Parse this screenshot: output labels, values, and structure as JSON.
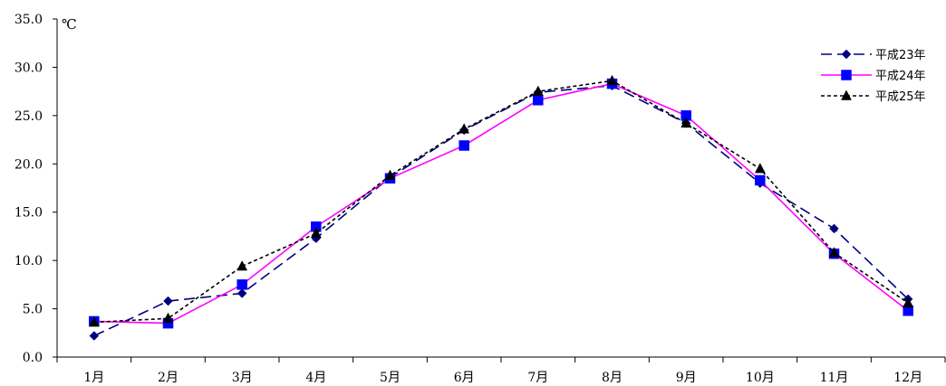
{
  "chart_data": {
    "type": "line",
    "title": "",
    "xlabel": "",
    "ylabel": "℃",
    "ylim": [
      0,
      35
    ],
    "y_ticks": [
      "0.0",
      "5.0",
      "10.0",
      "15.0",
      "20.0",
      "25.0",
      "30.0",
      "35.0"
    ],
    "y_tick_values": [
      0,
      5,
      10,
      15,
      20,
      25,
      30,
      35
    ],
    "categories": [
      "1月",
      "2月",
      "3月",
      "4月",
      "5月",
      "6月",
      "7月",
      "8月",
      "9月",
      "10月",
      "11月",
      "12月"
    ],
    "grid": false,
    "legend_position": "top-right",
    "series": [
      {
        "name": "平成23年",
        "color": "#000080",
        "line_style": "long-dash",
        "marker": "diamond",
        "values": [
          2.2,
          5.8,
          6.6,
          12.3,
          18.6,
          23.5,
          27.4,
          28.1,
          24.2,
          18.0,
          13.3,
          6.0
        ]
      },
      {
        "name": "平成24年",
        "color": "#FF00FF",
        "marker_color": "#0000FF",
        "line_style": "solid",
        "marker": "square",
        "values": [
          3.7,
          3.5,
          7.5,
          13.5,
          18.5,
          21.9,
          26.6,
          28.3,
          25.0,
          18.3,
          10.7,
          4.8
        ]
      },
      {
        "name": "平成25年",
        "color": "#000000",
        "line_style": "short-dash",
        "marker": "triangle",
        "values": [
          3.6,
          4.0,
          9.4,
          12.8,
          18.8,
          23.6,
          27.5,
          28.6,
          24.2,
          19.5,
          10.8,
          5.6
        ]
      }
    ]
  }
}
